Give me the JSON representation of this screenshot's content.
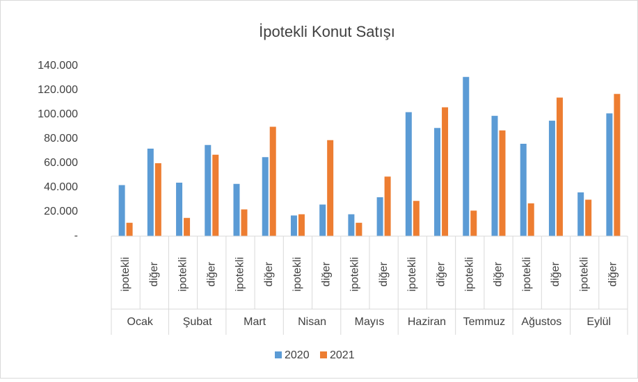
{
  "chart_data": {
    "type": "bar",
    "title": "İpotekli Konut Satışı",
    "categories": [
      "ipotekli",
      "diğer",
      "ipotekli",
      "diğer",
      "ipotekli",
      "diğer",
      "ipotekli",
      "diğer",
      "ipotekli",
      "diğer",
      "ipotekli",
      "diğer",
      "ipotekli",
      "diğer",
      "ipotekli",
      "diğer",
      "ipotekli",
      "diğer"
    ],
    "groups": [
      "Ocak",
      "Şubat",
      "Mart",
      "Nisan",
      "Mayıs",
      "Haziran",
      "Temmuz",
      "Ağustos",
      "Eylül"
    ],
    "series": [
      {
        "name": "2020",
        "color": "#5b9bd5",
        "values": [
          42000,
          72000,
          44000,
          75000,
          43000,
          65000,
          17000,
          26000,
          18000,
          32000,
          102000,
          89000,
          131000,
          99000,
          76000,
          95000,
          36000,
          101000
        ]
      },
      {
        "name": "2021",
        "color": "#ed7d31",
        "values": [
          11000,
          60000,
          15000,
          67000,
          22000,
          90000,
          18000,
          79000,
          11000,
          49000,
          29000,
          106000,
          21000,
          87000,
          27000,
          114000,
          30000,
          117000
        ]
      }
    ],
    "ylim": [
      0,
      140000
    ],
    "yticks": [
      {
        "value": 0,
        "label": "-"
      },
      {
        "value": 20000,
        "label": "20.000"
      },
      {
        "value": 40000,
        "label": "40.000"
      },
      {
        "value": 60000,
        "label": "60.000"
      },
      {
        "value": 80000,
        "label": "80.000"
      },
      {
        "value": 100000,
        "label": "100.000"
      },
      {
        "value": 120000,
        "label": "120.000"
      },
      {
        "value": 140000,
        "label": "140.000"
      }
    ],
    "grid": false,
    "legend": "bottom"
  }
}
